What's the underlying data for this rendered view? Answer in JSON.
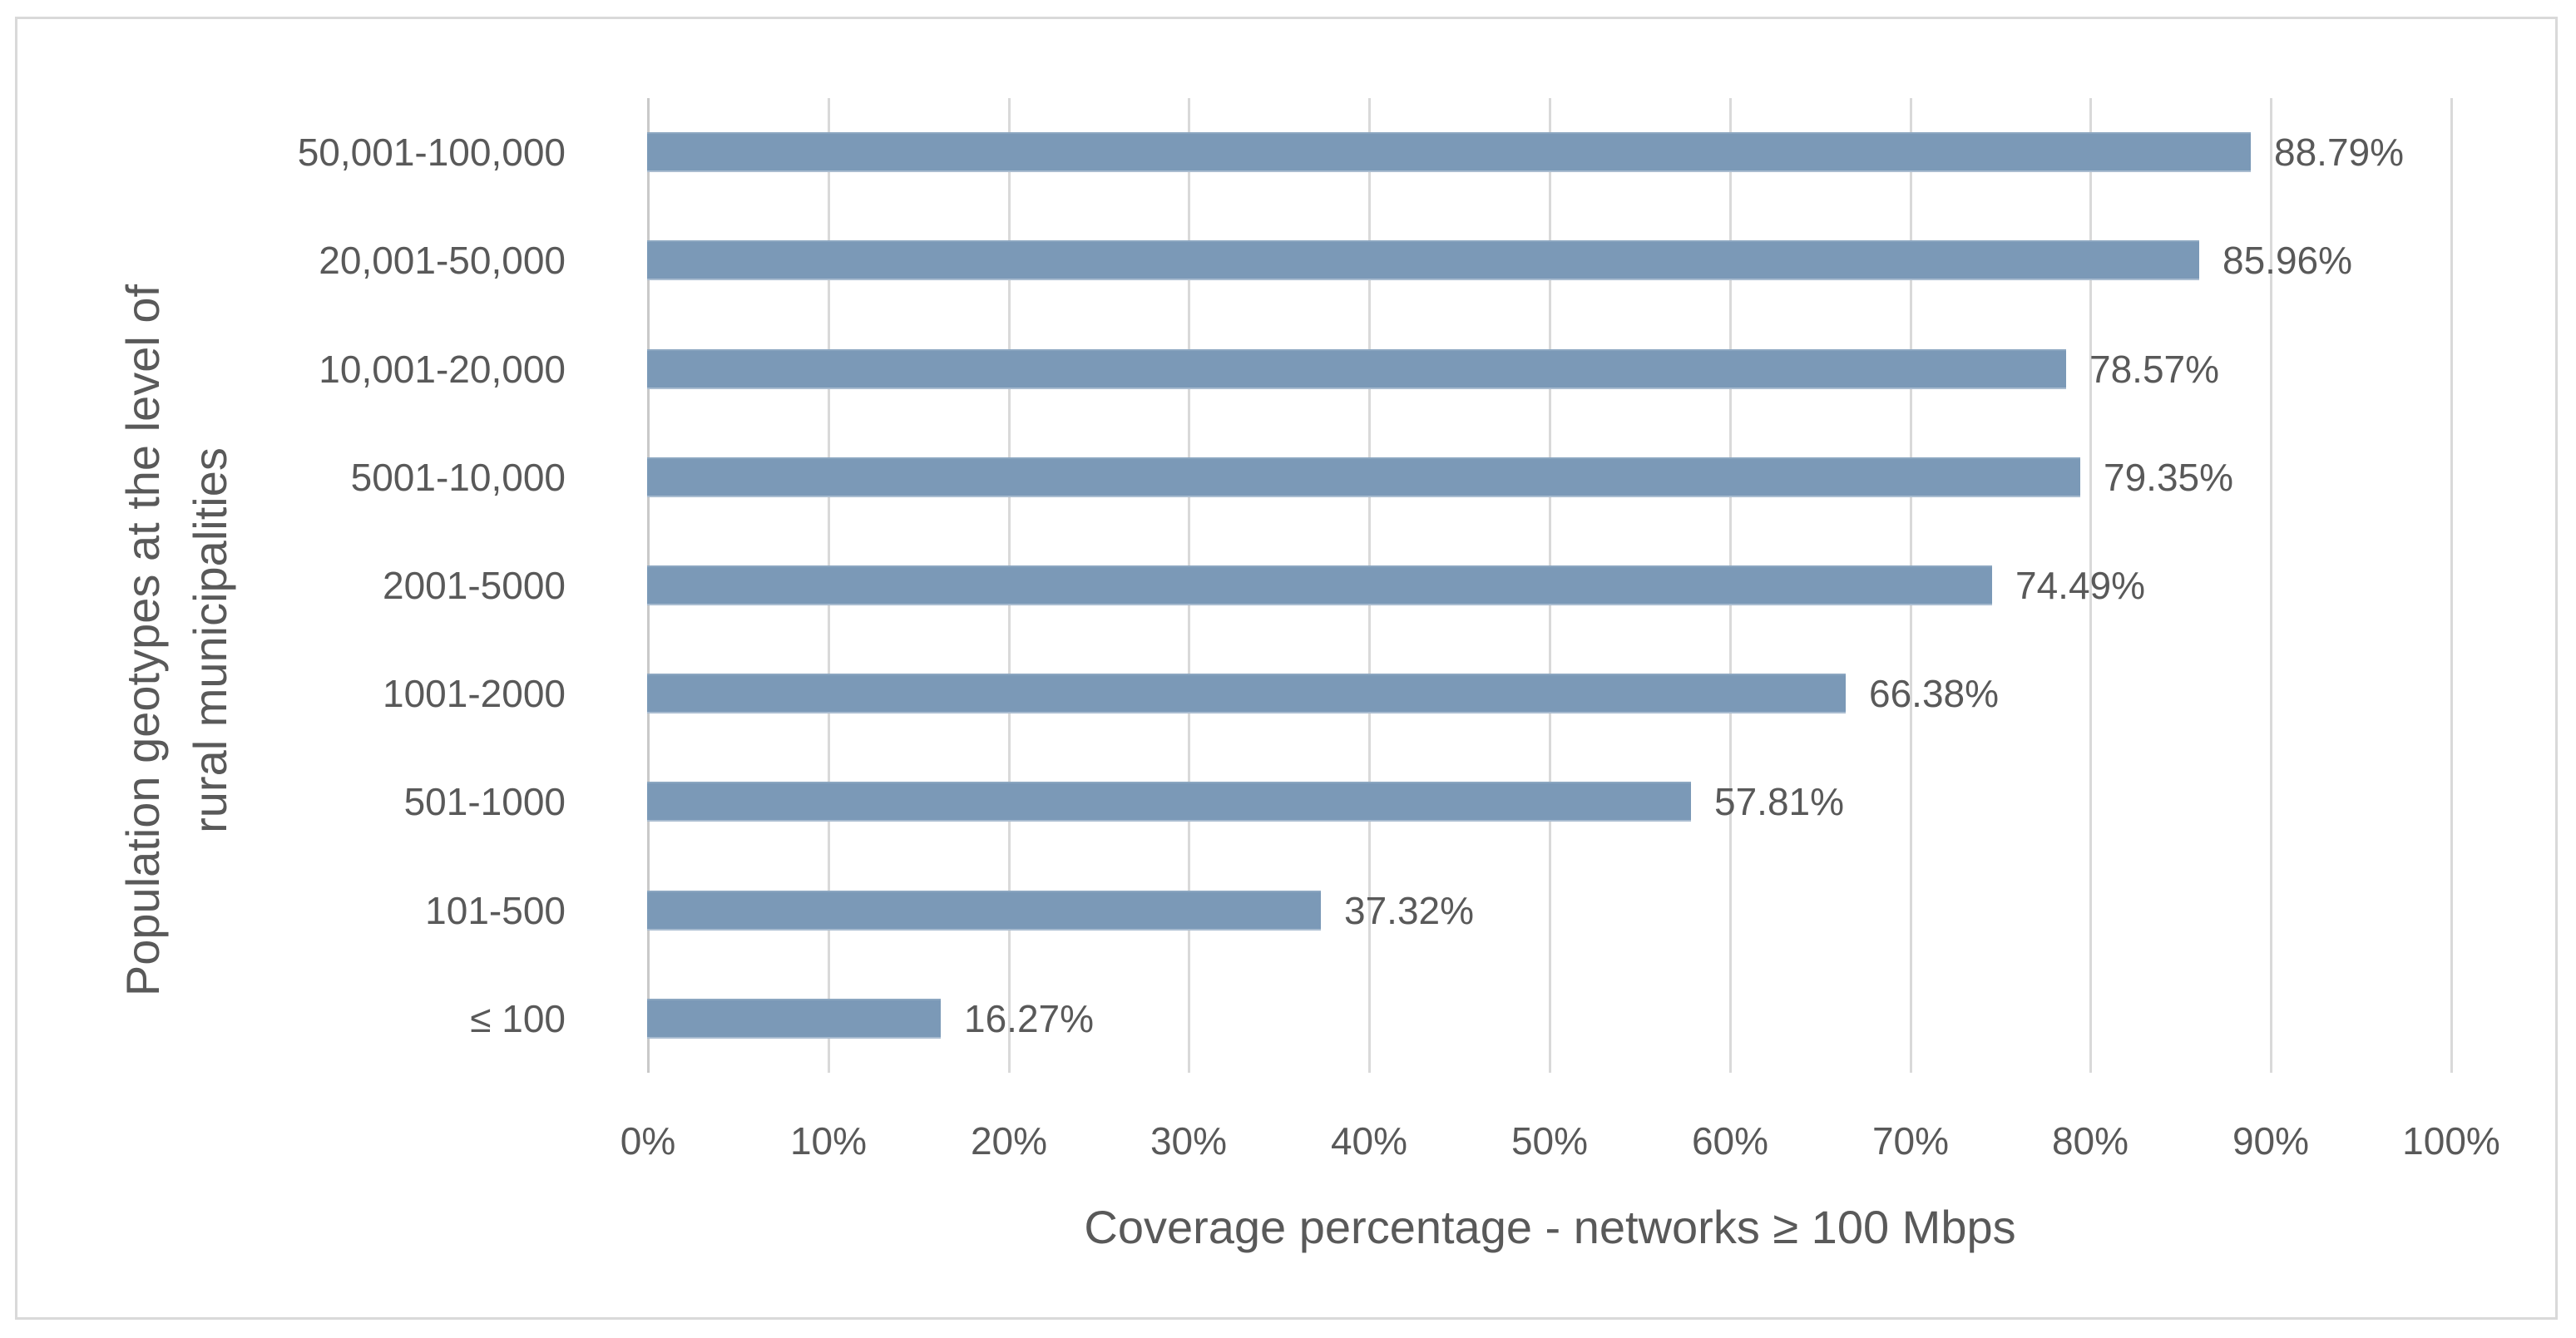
{
  "chart_data": {
    "type": "bar",
    "orientation": "horizontal",
    "categories": [
      "50,001-100,000",
      "20,001-50,000",
      "10,001-20,000",
      "5001-10,000",
      "2001-5000",
      "1001-2000",
      "501-1000",
      "101-500",
      "≤ 100"
    ],
    "values": [
      88.79,
      85.96,
      78.57,
      79.35,
      74.49,
      66.38,
      57.81,
      37.32,
      16.27
    ],
    "data_labels": [
      "88.79%",
      "85.96%",
      "78.57%",
      "79.35%",
      "74.49%",
      "66.38%",
      "57.81%",
      "37.32%",
      "16.27%"
    ],
    "xlabel": "Coverage percentage - networks ≥ 100 Mbps",
    "ylabel": "Population geotypes at the level of rural municipalities",
    "ylabel_lines": {
      "line1": "Population geotypes at the level of",
      "line2": "rural municipalities"
    },
    "x_ticks": [
      "0%",
      "10%",
      "20%",
      "30%",
      "40%",
      "50%",
      "60%",
      "70%",
      "80%",
      "90%",
      "100%"
    ],
    "xlim": [
      0,
      100
    ],
    "grid": "vertical-gridlines-on",
    "legend": "none",
    "colors": {
      "bar_fill": "#7b99b7",
      "gridline": "#d9d9d9",
      "frame_border": "#d9d9d9",
      "text": "#595959"
    }
  }
}
